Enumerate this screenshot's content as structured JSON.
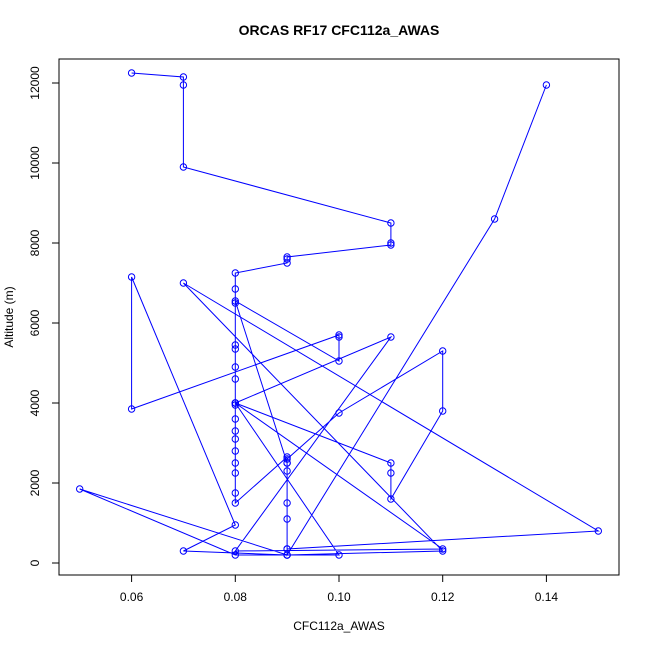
{
  "chart_data": {
    "type": "line",
    "title": "ORCAS RF17 CFC112a_AWAS",
    "xlabel": "CFC112a_AWAS",
    "ylabel": "Altitude (m)",
    "xlim": [
      0.046,
      0.154
    ],
    "ylim": [
      -300,
      12600
    ],
    "xticks": [
      0.06,
      0.08,
      0.1,
      0.12,
      0.14
    ],
    "xtick_labels": [
      "0.06",
      "0.08",
      "0.10",
      "0.12",
      "0.14"
    ],
    "yticks": [
      0,
      2000,
      4000,
      6000,
      8000,
      10000,
      12000
    ],
    "ytick_labels": [
      "0",
      "2000",
      "4000",
      "6000",
      "8000",
      "10000",
      "12000"
    ],
    "grid": false,
    "line_color": "#0000ff",
    "marker": "open-circle",
    "series": [
      {
        "x": [
          0.06,
          0.07,
          0.07,
          0.07,
          0.11,
          0.11,
          0.11,
          0.09,
          0.09,
          0.09,
          0.08,
          0.08,
          0.08,
          0.08,
          0.08,
          0.08,
          0.08,
          0.08,
          0.08,
          0.08,
          0.08,
          0.08,
          0.08,
          0.08,
          0.08,
          0.08,
          0.08,
          0.09,
          0.09,
          0.09,
          0.09,
          0.09,
          0.09,
          0.09,
          0.07,
          0.08,
          0.06,
          0.06,
          0.1,
          0.1,
          0.1,
          0.08,
          0.09,
          0.09,
          0.1,
          0.12,
          0.12,
          0.11,
          0.11,
          0.11,
          0.08,
          0.12,
          0.08,
          0.11,
          0.08,
          0.1,
          0.08,
          0.05,
          0.09,
          0.12,
          0.07,
          0.15,
          0.09,
          0.09,
          0.13,
          0.14
        ],
        "y": [
          12250,
          12150,
          11950,
          9900,
          8500,
          8000,
          7950,
          7650,
          7600,
          7500,
          7250,
          6850,
          6500,
          5450,
          5350,
          4900,
          4600,
          4000,
          3950,
          3600,
          3300,
          3100,
          2800,
          2500,
          2250,
          1750,
          1500,
          2650,
          2500,
          2300,
          1500,
          1100,
          350,
          200,
          300,
          950,
          7150,
          3850,
          5700,
          5650,
          5050,
          6550,
          2500,
          2600,
          3750,
          5300,
          3800,
          1600,
          2250,
          2500,
          4000,
          350,
          300,
          5650,
          4000,
          200,
          200,
          1850,
          200,
          300,
          7000,
          800,
          350,
          200,
          8600,
          11950
        ]
      }
    ]
  }
}
